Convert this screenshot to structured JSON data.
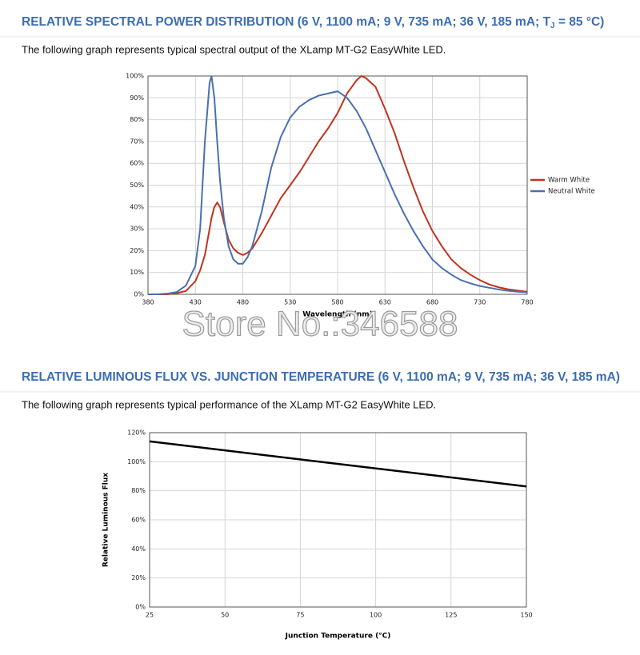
{
  "sections": [
    {
      "heading": [
        "RELATIVE SPECTRAL POWER DISTRIBUTION (6 V, 1100 mA; 9 V, 735 mA; 36 V, 185 mA; T",
        "J",
        " = 85 °C)"
      ],
      "text": "The following graph represents typical spectral output of the XLamp MT-G2 EasyWhite LED."
    },
    {
      "heading": [
        "RELATIVE LUMINOUS FLUX VS. JUNCTION TEMPERATURE (6 V, 1100 mA; 9 V, 735 mA; 36 V, 185 mA)"
      ],
      "text": "The following graph represents typical performance of the XLamp MT-G2 EasyWhite LED."
    }
  ],
  "watermark": "Store No.:346588",
  "chart_data": [
    {
      "type": "line",
      "xlabel": "Wavelength (nm)",
      "grid": true,
      "legend": "right",
      "x": [
        380,
        390,
        400,
        410,
        420,
        430,
        435,
        440,
        445,
        447,
        450,
        453,
        456,
        460,
        465,
        470,
        475,
        480,
        485,
        490,
        500,
        510,
        520,
        530,
        540,
        550,
        560,
        570,
        580,
        590,
        600,
        605,
        610,
        620,
        630,
        640,
        650,
        660,
        670,
        680,
        690,
        700,
        710,
        720,
        730,
        740,
        750,
        760,
        770,
        780
      ],
      "xlim": [
        380,
        780
      ],
      "xticks": [
        380,
        430,
        480,
        530,
        580,
        630,
        680,
        730,
        780
      ],
      "ylim": [
        0,
        100
      ],
      "yticks": [
        {
          "value": 0,
          "label": "0%"
        },
        {
          "value": 10,
          "label": "10%"
        },
        {
          "value": 20,
          "label": "20%"
        },
        {
          "value": 30,
          "label": "30%"
        },
        {
          "value": 40,
          "label": "40%"
        },
        {
          "value": 50,
          "label": "50%"
        },
        {
          "value": 60,
          "label": "60%"
        },
        {
          "value": 70,
          "label": "70%"
        },
        {
          "value": 80,
          "label": "80%"
        },
        {
          "value": 90,
          "label": "90%"
        },
        {
          "value": 100,
          "label": "100%"
        }
      ],
      "series": [
        {
          "name": "Warm White",
          "color": "#c0331f",
          "values": [
            0,
            0,
            0,
            0.5,
            1.5,
            6,
            11,
            18,
            30,
            35,
            40,
            42,
            40,
            33,
            25,
            21,
            19,
            18,
            19,
            21,
            28,
            36,
            44,
            50,
            56,
            63,
            70,
            76,
            83,
            92,
            98,
            100,
            99,
            95,
            85,
            74,
            61,
            49,
            38,
            29,
            22,
            16,
            12,
            9,
            6.5,
            4.5,
            3.2,
            2.3,
            1.7,
            1.2
          ]
        },
        {
          "name": "Neutral White",
          "color": "#4a70ad",
          "values": [
            0,
            0,
            0.3,
            1,
            4,
            13,
            30,
            70,
            97,
            100,
            90,
            70,
            52,
            35,
            22,
            16,
            14,
            14,
            17,
            22,
            38,
            58,
            72,
            81,
            86,
            89,
            91,
            92,
            93,
            90,
            84,
            80,
            76,
            66,
            56,
            46,
            37,
            29,
            22,
            16,
            12,
            9,
            6.5,
            5,
            3.8,
            3,
            2.2,
            1.6,
            1.2,
            0.9
          ]
        }
      ]
    },
    {
      "type": "line",
      "xlabel": "Junction Temperature (°C)",
      "ylabel": "Relative Luminous Flux",
      "grid": true,
      "x": [
        25,
        150
      ],
      "xlim": [
        25,
        150
      ],
      "xticks": [
        25,
        50,
        75,
        100,
        125,
        150
      ],
      "ylim": [
        0,
        120
      ],
      "yticks": [
        {
          "value": 0,
          "label": "0%"
        },
        {
          "value": 20,
          "label": "20%"
        },
        {
          "value": 40,
          "label": "40%"
        },
        {
          "value": 60,
          "label": "60%"
        },
        {
          "value": 80,
          "label": "80%"
        },
        {
          "value": 100,
          "label": "100%"
        },
        {
          "value": 120,
          "label": "120%"
        }
      ],
      "series": [
        {
          "color": "#000000",
          "values": [
            114,
            83
          ]
        }
      ]
    }
  ]
}
